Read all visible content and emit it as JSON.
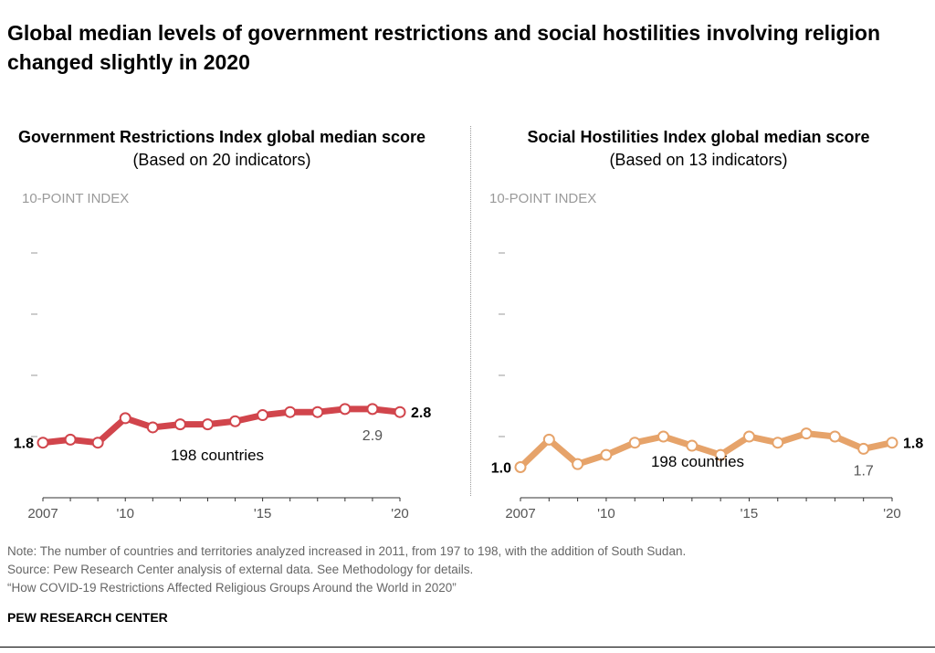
{
  "title": "Global median levels of government restrictions and social hostilities involving religion changed slightly in 2020",
  "chart_data": [
    {
      "type": "line",
      "title_bold": "Government Restrictions Index global median score",
      "title_rest": "(Based on 20 indicators)",
      "ylabel": "10-POINT INDEX",
      "ylim": [
        0,
        10
      ],
      "yticks": [
        2,
        4,
        6,
        8
      ],
      "x": [
        2007,
        2008,
        2009,
        2010,
        2011,
        2012,
        2013,
        2014,
        2015,
        2016,
        2017,
        2018,
        2019,
        2020
      ],
      "xtick_labels": [
        "2007",
        "",
        "",
        "'10",
        "",
        "",
        "",
        "",
        "'15",
        "",
        "",
        "",
        "",
        "'20"
      ],
      "values": [
        1.8,
        1.9,
        1.8,
        2.6,
        2.3,
        2.4,
        2.4,
        2.5,
        2.7,
        2.8,
        2.8,
        2.9,
        2.9,
        2.8
      ],
      "color": "#d1454c",
      "annotation": "198 countries",
      "start_label": "1.8",
      "end_label": "2.8",
      "note_label": "2.9"
    },
    {
      "type": "line",
      "title_bold": "Social Hostilities Index global median score",
      "title_rest": "(Based on 13 indicators)",
      "ylabel": "10-POINT INDEX",
      "ylim": [
        0,
        10
      ],
      "yticks": [
        2,
        4,
        6,
        8
      ],
      "x": [
        2007,
        2008,
        2009,
        2010,
        2011,
        2012,
        2013,
        2014,
        2015,
        2016,
        2017,
        2018,
        2019,
        2020
      ],
      "xtick_labels": [
        "2007",
        "",
        "",
        "'10",
        "",
        "",
        "",
        "",
        "'15",
        "",
        "",
        "",
        "",
        "'20"
      ],
      "values": [
        1.0,
        1.9,
        1.1,
        1.4,
        1.8,
        2.0,
        1.7,
        1.4,
        2.0,
        1.8,
        2.1,
        2.0,
        1.6,
        1.8
      ],
      "color": "#e6a36a",
      "annotation": "198 countries",
      "start_label": "1.0",
      "end_label": "1.8",
      "note_label": "1.7"
    }
  ],
  "footer": {
    "note": "Note: The number of countries and territories analyzed increased in 2011, from 197 to 198, with the addition of South Sudan.",
    "source": "Source: Pew Research Center analysis of external data. See Methodology for details.",
    "report": "“How COVID-19 Restrictions Affected Religious Groups Around the World in 2020”",
    "brand": "PEW RESEARCH CENTER"
  }
}
